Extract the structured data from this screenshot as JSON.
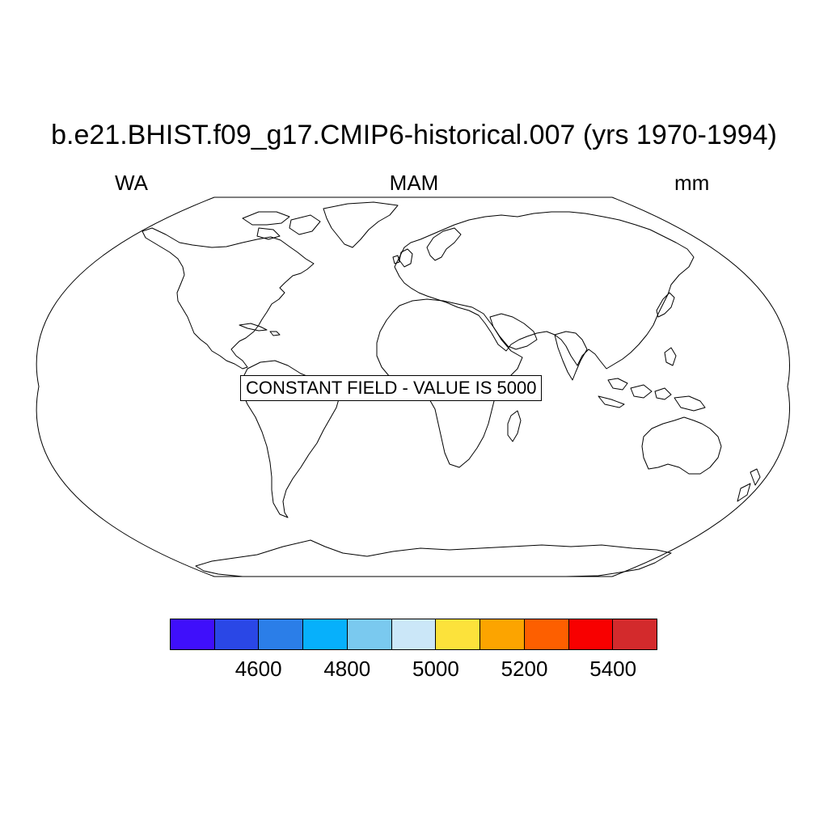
{
  "title": "b.e21.BHIST.f09_g17.CMIP6-historical.007 (yrs 1970-1994)",
  "left_string": "WA",
  "center_string": "MAM",
  "right_string": "mm",
  "constant_field_message": "CONSTANT FIELD - VALUE IS 5000",
  "projection": "Robinson",
  "colorbar": {
    "colors": [
      "#3f0ffb",
      "#2a47e6",
      "#2b7ee8",
      "#07b0fb",
      "#7ac9ef",
      "#cbe7f8",
      "#fce23b",
      "#fca400",
      "#fd5f00",
      "#f80000",
      "#d32a2c"
    ],
    "labels": [
      "4600",
      "4800",
      "5000",
      "5200",
      "5400"
    ]
  }
}
